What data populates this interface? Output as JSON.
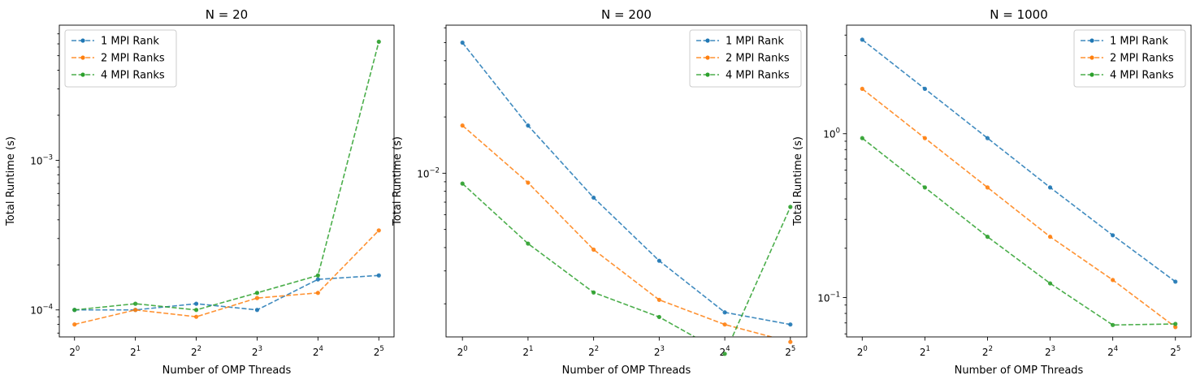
{
  "chart_data": [
    {
      "type": "line",
      "title": "N = 20",
      "xlabel": "Number of OMP Threads",
      "ylabel": "Total Runtime (s)",
      "xscale": "log2",
      "yscale": "log",
      "x": [
        1,
        2,
        4,
        8,
        16,
        32
      ],
      "x_tick_labels": [
        {
          "base": "2",
          "exp": "0"
        },
        {
          "base": "2",
          "exp": "1"
        },
        {
          "base": "2",
          "exp": "2"
        },
        {
          "base": "2",
          "exp": "3"
        },
        {
          "base": "2",
          "exp": "4"
        },
        {
          "base": "2",
          "exp": "5"
        }
      ],
      "ylim": [
        6.6e-05,
        0.008
      ],
      "y_tick_labels": [
        {
          "value": 0.0001,
          "base": "10",
          "exp": "−4"
        },
        {
          "value": 0.001,
          "base": "10",
          "exp": "−3"
        }
      ],
      "legend_position": "upper-left",
      "series": [
        {
          "name": "1 MPI Rank",
          "color": "#1f77b4",
          "values": [
            0.0001,
            0.0001,
            0.00011,
            0.0001,
            0.00016,
            0.00017
          ]
        },
        {
          "name": "2 MPI Ranks",
          "color": "#ff7f0e",
          "values": [
            8e-05,
            0.0001,
            9e-05,
            0.00012,
            0.00013,
            0.00034
          ]
        },
        {
          "name": "4 MPI Ranks",
          "color": "#2ca02c",
          "values": [
            0.0001,
            0.00011,
            0.0001,
            0.00013,
            0.00017,
            0.0062
          ]
        }
      ]
    },
    {
      "type": "line",
      "title": "N = 200",
      "xlabel": "Number of OMP Threads",
      "ylabel": "Total Runtime (s)",
      "xscale": "log2",
      "yscale": "log",
      "x": [
        1,
        2,
        4,
        8,
        16,
        32
      ],
      "x_tick_labels": [
        {
          "base": "2",
          "exp": "0"
        },
        {
          "base": "2",
          "exp": "1"
        },
        {
          "base": "2",
          "exp": "2"
        },
        {
          "base": "2",
          "exp": "3"
        },
        {
          "base": "2",
          "exp": "4"
        },
        {
          "base": "2",
          "exp": "5"
        }
      ],
      "ylim": [
        0.00133,
        0.062
      ],
      "y_tick_labels": [
        {
          "value": 0.01,
          "base": "10",
          "exp": "−2"
        }
      ],
      "legend_position": "upper-right",
      "series": [
        {
          "name": "1 MPI Rank",
          "color": "#1f77b4",
          "values": [
            0.05,
            0.018,
            0.0074,
            0.0034,
            0.0018,
            0.00155
          ]
        },
        {
          "name": "2 MPI Ranks",
          "color": "#ff7f0e",
          "values": [
            0.018,
            0.0089,
            0.0039,
            0.0021,
            0.00155,
            0.00125
          ]
        },
        {
          "name": "4 MPI Ranks",
          "color": "#2ca02c",
          "values": [
            0.0088,
            0.0042,
            0.0023,
            0.0017,
            0.00108,
            0.0066
          ]
        }
      ]
    },
    {
      "type": "line",
      "title": "N = 1000",
      "xlabel": "Number of OMP Threads",
      "ylabel": "Total Runtime (s)",
      "xscale": "log2",
      "yscale": "log",
      "x": [
        1,
        2,
        4,
        8,
        16,
        32
      ],
      "x_tick_labels": [
        {
          "base": "2",
          "exp": "0"
        },
        {
          "base": "2",
          "exp": "1"
        },
        {
          "base": "2",
          "exp": "2"
        },
        {
          "base": "2",
          "exp": "3"
        },
        {
          "base": "2",
          "exp": "4"
        },
        {
          "base": "2",
          "exp": "5"
        }
      ],
      "ylim": [
        0.0575,
        4.6
      ],
      "y_tick_labels": [
        {
          "value": 0.1,
          "base": "10",
          "exp": "−1"
        },
        {
          "value": 1,
          "base": "10",
          "exp": "0"
        }
      ],
      "legend_position": "upper-right",
      "series": [
        {
          "name": "1 MPI Rank",
          "color": "#1f77b4",
          "values": [
            3.75,
            1.88,
            0.94,
            0.47,
            0.24,
            0.125
          ]
        },
        {
          "name": "2 MPI Ranks",
          "color": "#ff7f0e",
          "values": [
            1.88,
            0.94,
            0.47,
            0.235,
            0.128,
            0.066
          ]
        },
        {
          "name": "4 MPI Ranks",
          "color": "#2ca02c",
          "values": [
            0.94,
            0.47,
            0.235,
            0.122,
            0.068,
            0.069
          ]
        }
      ]
    }
  ]
}
